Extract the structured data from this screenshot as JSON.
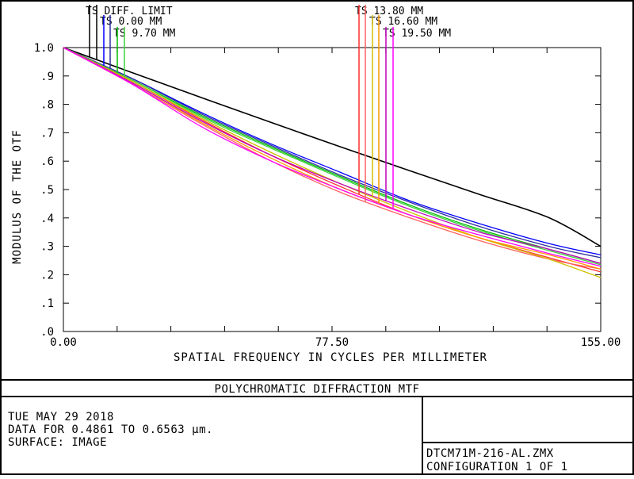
{
  "chart_data": {
    "type": "line",
    "xlabel": "SPATIAL FREQUENCY IN CYCLES PER MILLIMETER",
    "ylabel": "MODULUS OF THE OTF",
    "xlim": [
      0,
      155
    ],
    "ylim": [
      0,
      1.0
    ],
    "x_ticks": [
      "0.00",
      "77.50",
      "155.00"
    ],
    "y_ticks": [
      ".0",
      ".1",
      ".2",
      ".3",
      ".4",
      ".5",
      ".6",
      ".7",
      ".8",
      ".9",
      "1.0"
    ],
    "grid": false,
    "series": [
      {
        "name": "TS DIFF. LIMIT",
        "color": "#000000",
        "x": [
          0,
          20,
          40,
          60,
          80,
          100,
          120,
          140,
          155
        ],
        "y": [
          1.0,
          0.911,
          0.823,
          0.736,
          0.65,
          0.566,
          0.483,
          0.401,
          0.3
        ]
      },
      {
        "name": "TS 0.00 MM",
        "color": "#0000ff",
        "x": [
          0,
          20,
          40,
          60,
          80,
          100,
          120,
          140,
          155
        ],
        "y": [
          1.0,
          0.89,
          0.77,
          0.66,
          0.56,
          0.46,
          0.38,
          0.31,
          0.27
        ]
      },
      {
        "name": "TS 0.00 MM",
        "color": "#3030a0",
        "x": [
          0,
          20,
          40,
          60,
          80,
          100,
          120,
          140,
          155
        ],
        "y": [
          1.0,
          0.89,
          0.765,
          0.655,
          0.55,
          0.455,
          0.37,
          0.3,
          0.26
        ]
      },
      {
        "name": "TS 9.70 MM",
        "color": "#00c000",
        "x": [
          0,
          20,
          40,
          60,
          80,
          100,
          120,
          140,
          155
        ],
        "y": [
          1.0,
          0.885,
          0.76,
          0.65,
          0.545,
          0.445,
          0.36,
          0.29,
          0.24
        ]
      },
      {
        "name": "TS 9.70 MM",
        "color": "#40d040",
        "x": [
          0,
          20,
          40,
          60,
          80,
          100,
          120,
          140,
          155
        ],
        "y": [
          1.0,
          0.885,
          0.755,
          0.645,
          0.54,
          0.44,
          0.355,
          0.285,
          0.235
        ]
      },
      {
        "name": "TS 13.80 MM",
        "color": "#ff3030",
        "x": [
          0,
          20,
          40,
          60,
          80,
          100,
          120,
          140,
          155
        ],
        "y": [
          1.0,
          0.88,
          0.745,
          0.62,
          0.51,
          0.41,
          0.33,
          0.26,
          0.21
        ]
      },
      {
        "name": "TS 13.80 MM",
        "color": "#ff6060",
        "x": [
          0,
          20,
          40,
          60,
          80,
          100,
          120,
          140,
          155
        ],
        "y": [
          1.0,
          0.87,
          0.73,
          0.6,
          0.49,
          0.4,
          0.32,
          0.255,
          0.22
        ]
      },
      {
        "name": "TS 16.60 MM",
        "color": "#d0c000",
        "x": [
          0,
          20,
          40,
          60,
          80,
          100,
          120,
          140,
          155
        ],
        "y": [
          1.0,
          0.88,
          0.75,
          0.63,
          0.52,
          0.42,
          0.33,
          0.255,
          0.19
        ]
      },
      {
        "name": "TS 16.60 MM",
        "color": "#ff9900",
        "x": [
          0,
          20,
          40,
          60,
          80,
          100,
          120,
          140,
          155
        ],
        "y": [
          1.0,
          0.875,
          0.735,
          0.61,
          0.5,
          0.41,
          0.33,
          0.27,
          0.22
        ]
      },
      {
        "name": "TS 19.50 MM",
        "color": "#c000c0",
        "x": [
          0,
          20,
          40,
          60,
          80,
          100,
          120,
          140,
          155
        ],
        "y": [
          1.0,
          0.875,
          0.74,
          0.62,
          0.52,
          0.43,
          0.35,
          0.29,
          0.24
        ]
      },
      {
        "name": "TS 19.50 MM",
        "color": "#ff00ff",
        "x": [
          0,
          20,
          40,
          60,
          80,
          100,
          120,
          140,
          155
        ],
        "y": [
          1.0,
          0.87,
          0.72,
          0.6,
          0.5,
          0.41,
          0.34,
          0.275,
          0.23
        ]
      }
    ],
    "legend_labels": [
      "TS DIFF. LIMIT",
      "TS 0.00 MM",
      "TS 9.70 MM",
      "TS 13.80 MM",
      "TS 16.60 MM",
      "TS 19.50 MM"
    ]
  },
  "footer": {
    "title": "POLYCHROMATIC DIFFRACTION MTF",
    "date": "TUE MAY 29 2018",
    "data_range": "DATA FOR 0.4861 TO 0.6563 µm.",
    "surface": "SURFACE: IMAGE",
    "file": "DTCM71M-216-AL.ZMX",
    "config": "CONFIGURATION 1 OF 1"
  }
}
